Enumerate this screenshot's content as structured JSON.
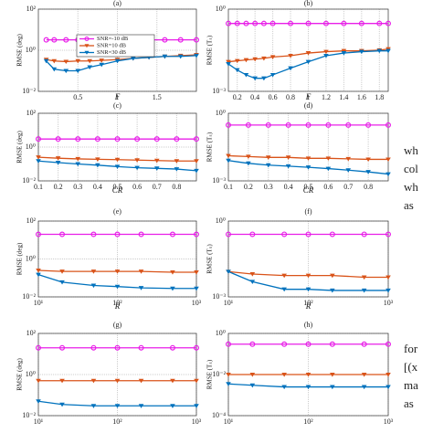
{
  "chart_data": [
    {
      "type": "line",
      "title": "(a)",
      "x_label": "F",
      "y_label": "RMSE (deg)",
      "xscale": "linear",
      "yscale": "log",
      "legend": "top",
      "xlim": [
        0,
        2
      ],
      "xticks": [
        0.5,
        1,
        1.5
      ],
      "ylim": [
        0.01,
        100
      ],
      "yticks": [
        {
          "value": 0.01,
          "label": "10⁻²"
        },
        {
          "value": 1,
          "label": "10⁰"
        },
        {
          "value": 100,
          "label": "10²"
        }
      ],
      "x": [
        0.1,
        0.2,
        0.35,
        0.5,
        0.65,
        0.8,
        1.0,
        1.2,
        1.4,
        1.6,
        1.8,
        2.0
      ],
      "series": [
        {
          "name": "SNR=-10 dB",
          "color": "#e81fe8",
          "marker": "circle",
          "values": [
            3.2,
            3.2,
            3.2,
            3.2,
            3.2,
            3.2,
            3.2,
            3.2,
            3.2,
            3.2,
            3.2,
            3.2
          ]
        },
        {
          "name": "SNR=10 dB",
          "color": "#d95319",
          "marker": "triangle",
          "values": [
            0.35,
            0.3,
            0.28,
            0.3,
            0.3,
            0.32,
            0.35,
            0.4,
            0.45,
            0.5,
            0.55,
            0.6
          ]
        },
        {
          "name": "SNR=30 dB",
          "color": "#0072bd",
          "marker": "triangle",
          "values": [
            0.3,
            0.12,
            0.1,
            0.1,
            0.15,
            0.2,
            0.3,
            0.4,
            0.45,
            0.5,
            0.5,
            0.55
          ]
        }
      ]
    },
    {
      "type": "line",
      "title": "(b)",
      "x_label": "F",
      "y_label": "RMSE (Tₛ)",
      "xscale": "linear",
      "yscale": "log",
      "xlim": [
        0.1,
        1.9
      ],
      "xticks": [
        0.2,
        0.4,
        0.6,
        0.8,
        1,
        1.2,
        1.4,
        1.6,
        1.8
      ],
      "ylim": [
        0.001,
        1
      ],
      "yticks": [
        {
          "value": 0.001,
          "label": "10⁻³"
        },
        {
          "value": 1,
          "label": "10⁰"
        }
      ],
      "x": [
        0.1,
        0.2,
        0.3,
        0.4,
        0.5,
        0.6,
        0.8,
        1.0,
        1.2,
        1.4,
        1.6,
        1.8,
        1.9
      ],
      "series": [
        {
          "name": "SNR=-10 dB",
          "color": "#e81fe8",
          "marker": "circle",
          "values": [
            0.3,
            0.3,
            0.3,
            0.3,
            0.3,
            0.3,
            0.3,
            0.3,
            0.3,
            0.3,
            0.3,
            0.3,
            0.3
          ]
        },
        {
          "name": "SNR=10 dB",
          "color": "#d95319",
          "marker": "triangle",
          "values": [
            0.012,
            0.013,
            0.014,
            0.015,
            0.016,
            0.018,
            0.02,
            0.025,
            0.028,
            0.03,
            0.03,
            0.032,
            0.035
          ]
        },
        {
          "name": "SNR=30 dB",
          "color": "#0072bd",
          "marker": "triangle",
          "values": [
            0.01,
            0.006,
            0.004,
            0.003,
            0.003,
            0.004,
            0.007,
            0.012,
            0.02,
            0.025,
            0.028,
            0.03,
            0.03
          ]
        }
      ]
    },
    {
      "type": "line",
      "title": "(c)",
      "x_label": "CR",
      "y_label": "RMSE (deg)",
      "xscale": "linear",
      "yscale": "log",
      "xlim": [
        0.1,
        0.9
      ],
      "xticks": [
        0.1,
        0.2,
        0.3,
        0.4,
        0.5,
        0.6,
        0.7,
        0.8
      ],
      "ylim": [
        0.01,
        100
      ],
      "yticks": [
        {
          "value": 0.01,
          "label": "10⁻²"
        },
        {
          "value": 1,
          "label": "10⁰"
        },
        {
          "value": 100,
          "label": "10²"
        }
      ],
      "x": [
        0.1,
        0.2,
        0.3,
        0.4,
        0.5,
        0.6,
        0.7,
        0.8,
        0.9
      ],
      "series": [
        {
          "name": "SNR=-10 dB",
          "color": "#e81fe8",
          "marker": "circle",
          "values": [
            3,
            3,
            3,
            3,
            3,
            3,
            3,
            3,
            3
          ]
        },
        {
          "name": "SNR=10 dB",
          "color": "#d95319",
          "marker": "triangle",
          "values": [
            0.25,
            0.22,
            0.2,
            0.19,
            0.18,
            0.17,
            0.16,
            0.15,
            0.15
          ]
        },
        {
          "name": "SNR=30 dB",
          "color": "#0072bd",
          "marker": "triangle",
          "values": [
            0.15,
            0.12,
            0.1,
            0.085,
            0.07,
            0.06,
            0.055,
            0.05,
            0.04
          ]
        }
      ]
    },
    {
      "type": "line",
      "title": "(d)",
      "x_label": "CR",
      "y_label": "RMSE (Tₛ)",
      "xscale": "linear",
      "yscale": "log",
      "xlim": [
        0.1,
        0.9
      ],
      "xticks": [
        0.1,
        0.2,
        0.3,
        0.4,
        0.5,
        0.6,
        0.7,
        0.8
      ],
      "ylim": [
        0.001,
        1
      ],
      "yticks": [
        {
          "value": 0.001,
          "label": "10⁻³"
        },
        {
          "value": 1,
          "label": "10⁰"
        }
      ],
      "x": [
        0.1,
        0.2,
        0.3,
        0.4,
        0.5,
        0.6,
        0.7,
        0.8,
        0.9
      ],
      "series": [
        {
          "name": "SNR=-10 dB",
          "color": "#e81fe8",
          "marker": "circle",
          "values": [
            0.3,
            0.3,
            0.3,
            0.3,
            0.3,
            0.3,
            0.3,
            0.3,
            0.3
          ]
        },
        {
          "name": "SNR=10 dB",
          "color": "#d95319",
          "marker": "triangle",
          "values": [
            0.013,
            0.012,
            0.011,
            0.011,
            0.01,
            0.01,
            0.0095,
            0.009,
            0.009
          ]
        },
        {
          "name": "SNR=30 dB",
          "color": "#0072bd",
          "marker": "triangle",
          "values": [
            0.008,
            0.006,
            0.005,
            0.0045,
            0.004,
            0.0035,
            0.003,
            0.0025,
            0.002
          ]
        }
      ]
    },
    {
      "type": "line",
      "title": "(e)",
      "x_label": "R",
      "y_label": "RMSE (deg)",
      "xscale": "log",
      "yscale": "log",
      "xlim": [
        10,
        1000
      ],
      "xticks": [
        {
          "value": 10,
          "label": "10¹"
        },
        {
          "value": 100,
          "label": "10²"
        },
        {
          "value": 1000,
          "label": "10³"
        }
      ],
      "ylim": [
        0.01,
        100
      ],
      "yticks": [
        {
          "value": 0.01,
          "label": "10⁻²"
        },
        {
          "value": 1,
          "label": "10⁰"
        },
        {
          "value": 100,
          "label": "10²"
        }
      ],
      "x": [
        10,
        20,
        50,
        100,
        200,
        500,
        1000
      ],
      "series": [
        {
          "name": "SNR=-10 dB",
          "color": "#e81fe8",
          "marker": "circle",
          "values": [
            20,
            20,
            20,
            20,
            20,
            20,
            20
          ]
        },
        {
          "name": "SNR=10 dB",
          "color": "#d95319",
          "marker": "triangle",
          "values": [
            0.25,
            0.22,
            0.22,
            0.22,
            0.22,
            0.2,
            0.2
          ]
        },
        {
          "name": "SNR=30 dB",
          "color": "#0072bd",
          "marker": "triangle",
          "values": [
            0.15,
            0.06,
            0.04,
            0.035,
            0.03,
            0.028,
            0.028
          ]
        }
      ]
    },
    {
      "type": "line",
      "title": "(f)",
      "x_label": "R",
      "y_label": "RMSE (Tₛ)",
      "xscale": "log",
      "yscale": "log",
      "xlim": [
        10,
        1000
      ],
      "xticks": [
        {
          "value": 10,
          "label": "10¹"
        },
        {
          "value": 100,
          "label": "10²"
        },
        {
          "value": 1000,
          "label": "10³"
        }
      ],
      "ylim": [
        0.001,
        1
      ],
      "yticks": [
        {
          "value": 0.001,
          "label": "10⁻³"
        },
        {
          "value": 1,
          "label": "10⁰"
        }
      ],
      "x": [
        10,
        20,
        50,
        100,
        200,
        500,
        1000
      ],
      "series": [
        {
          "name": "SNR=-10 dB",
          "color": "#e81fe8",
          "marker": "circle",
          "values": [
            0.3,
            0.3,
            0.3,
            0.3,
            0.3,
            0.3,
            0.3
          ]
        },
        {
          "name": "SNR=10 dB",
          "color": "#d95319",
          "marker": "triangle",
          "values": [
            0.01,
            0.008,
            0.007,
            0.007,
            0.007,
            0.006,
            0.006
          ]
        },
        {
          "name": "SNR=30 dB",
          "color": "#0072bd",
          "marker": "triangle",
          "values": [
            0.01,
            0.004,
            0.002,
            0.002,
            0.0018,
            0.0018,
            0.0018
          ]
        }
      ]
    },
    {
      "type": "line",
      "title": "(g)",
      "y_label": "RMSE (deg)",
      "xscale": "log",
      "yscale": "log",
      "xlim": [
        10,
        1000
      ],
      "xticks": [
        {
          "value": 10,
          "label": "10¹"
        },
        {
          "value": 100,
          "label": "10²"
        },
        {
          "value": 1000,
          "label": "10³"
        }
      ],
      "ylim": [
        0.01,
        100
      ],
      "yticks": [
        {
          "value": 0.01,
          "label": "10⁻²"
        },
        {
          "value": 1,
          "label": "10⁰"
        },
        {
          "value": 100,
          "label": "10²"
        }
      ],
      "x": [
        10,
        20,
        50,
        100,
        200,
        500,
        1000
      ],
      "series": [
        {
          "name": "SNR=-10 dB",
          "color": "#e81fe8",
          "marker": "circle",
          "values": [
            20,
            20,
            20,
            20,
            20,
            20,
            20
          ]
        },
        {
          "name": "SNR=10 dB",
          "color": "#d95319",
          "marker": "triangle",
          "values": [
            0.5,
            0.5,
            0.5,
            0.5,
            0.5,
            0.5,
            0.5
          ]
        },
        {
          "name": "SNR=30 dB",
          "color": "#0072bd",
          "marker": "triangle",
          "values": [
            0.05,
            0.035,
            0.03,
            0.03,
            0.03,
            0.03,
            0.03
          ]
        }
      ]
    },
    {
      "type": "line",
      "title": "(h)",
      "y_label": "RMSE (Tₛ)",
      "xscale": "log",
      "yscale": "log",
      "xlim": [
        10,
        1000
      ],
      "xticks": [
        {
          "value": 10,
          "label": "10¹"
        },
        {
          "value": 100,
          "label": "10²"
        },
        {
          "value": 1000,
          "label": "10³"
        }
      ],
      "ylim": [
        0.0001,
        1
      ],
      "yticks": [
        {
          "value": 0.0001,
          "label": "10⁻⁴"
        },
        {
          "value": 0.01,
          "label": "10⁻²"
        },
        {
          "value": 1,
          "label": "10⁰"
        }
      ],
      "x": [
        10,
        20,
        50,
        100,
        200,
        500,
        1000
      ],
      "series": [
        {
          "name": "SNR=-10 dB",
          "color": "#e81fe8",
          "marker": "circle",
          "values": [
            0.3,
            0.3,
            0.3,
            0.3,
            0.3,
            0.3,
            0.3
          ]
        },
        {
          "name": "SNR=10 dB",
          "color": "#d95319",
          "marker": "triangle",
          "values": [
            0.01,
            0.01,
            0.01,
            0.01,
            0.01,
            0.01,
            0.01
          ]
        },
        {
          "name": "SNR=30 dB",
          "color": "#0072bd",
          "marker": "triangle",
          "values": [
            0.0035,
            0.003,
            0.0025,
            0.0025,
            0.0025,
            0.0025,
            0.0025
          ]
        }
      ]
    }
  ],
  "side_text": [
    "wh",
    "col",
    "wh",
    "as",
    "for",
    "[(x",
    "ma",
    "as"
  ]
}
